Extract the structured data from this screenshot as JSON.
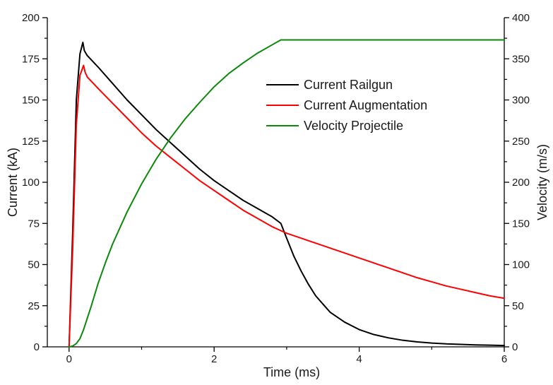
{
  "chart_data": {
    "type": "line",
    "xlabel": "Time (ms)",
    "ylabel_left": "Current (kA)",
    "ylabel_right": "Velocity (m/s)",
    "xlim": [
      -0.3,
      6
    ],
    "ylim_left": [
      0,
      200
    ],
    "ylim_right": [
      0,
      400
    ],
    "x_ticks": [
      0,
      2,
      4,
      6
    ],
    "y_left_ticks": [
      0,
      25,
      50,
      75,
      100,
      125,
      150,
      175,
      200
    ],
    "y_right_ticks": [
      0,
      50,
      100,
      150,
      200,
      250,
      300,
      350,
      400
    ],
    "grid": false,
    "legend_position": "upper-middle",
    "series": [
      {
        "name": "Current Railgun",
        "axis": "left",
        "color": "#000000",
        "x": [
          0,
          0.05,
          0.1,
          0.15,
          0.19,
          0.21,
          0.25,
          0.4,
          0.6,
          0.8,
          1.0,
          1.2,
          1.4,
          1.6,
          1.8,
          2.0,
          2.2,
          2.4,
          2.6,
          2.8,
          2.92,
          3.0,
          3.1,
          3.2,
          3.3,
          3.4,
          3.5,
          3.6,
          3.8,
          4.0,
          4.2,
          4.4,
          4.6,
          4.8,
          5.0,
          5.2,
          5.4,
          5.6,
          5.8,
          6.0
        ],
        "y": [
          0,
          70,
          150,
          178,
          185,
          180,
          177,
          170,
          160,
          150,
          141,
          132,
          124,
          116,
          108,
          101,
          95,
          89,
          84,
          79,
          75,
          66,
          55,
          46,
          38,
          31,
          26,
          21,
          15,
          10.5,
          7.5,
          5.5,
          4,
          3,
          2.3,
          1.8,
          1.5,
          1.2,
          1,
          0.8
        ]
      },
      {
        "name": "Current Augmentation",
        "axis": "left",
        "color": "#ff0000",
        "x": [
          0,
          0.05,
          0.1,
          0.15,
          0.2,
          0.22,
          0.25,
          0.4,
          0.6,
          0.8,
          1.0,
          1.2,
          1.4,
          1.6,
          1.8,
          2.0,
          2.2,
          2.4,
          2.6,
          2.8,
          3.0,
          3.2,
          3.4,
          3.6,
          3.8,
          4.0,
          4.2,
          4.4,
          4.6,
          4.8,
          5.0,
          5.2,
          5.4,
          5.6,
          5.8,
          6.0
        ],
        "y": [
          0,
          60,
          135,
          165,
          171,
          167,
          164,
          157,
          148,
          139,
          130,
          122,
          115,
          108,
          101,
          95,
          89,
          83,
          78,
          73,
          69,
          66,
          63,
          60,
          57,
          54,
          51,
          48,
          45,
          42,
          39.5,
          37,
          35,
          33,
          31,
          29.5
        ]
      },
      {
        "name": "Velocity Projectile",
        "axis": "right",
        "color": "#0a8a0a",
        "x": [
          0,
          0.05,
          0.1,
          0.15,
          0.2,
          0.3,
          0.4,
          0.5,
          0.6,
          0.8,
          1.0,
          1.2,
          1.4,
          1.6,
          1.8,
          2.0,
          2.2,
          2.4,
          2.6,
          2.8,
          2.92,
          3.0,
          4.0,
          5.0,
          6.0
        ],
        "y": [
          0,
          1,
          4,
          10,
          21,
          48,
          77,
          102,
          125,
          164,
          198,
          228,
          254,
          277,
          297,
          316,
          332,
          345,
          357,
          367,
          373,
          373,
          373,
          373,
          373
        ]
      }
    ]
  }
}
